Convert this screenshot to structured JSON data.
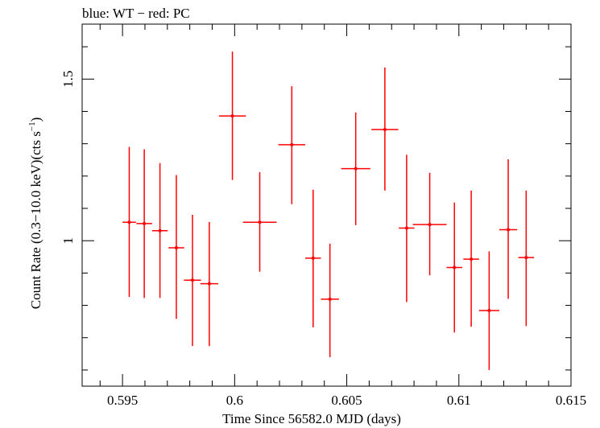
{
  "chart_data": {
    "type": "scatter",
    "title": "blue: WT − red: PC",
    "xlabel": "Time Since 56582.0 MJD (days)",
    "ylabel": "Count Rate (0.3−10.0 keV)(cts s−1)",
    "xlim": [
      0.5932,
      0.615
    ],
    "ylim": [
      0.55,
      1.67
    ],
    "x_ticks": [
      0.595,
      0.6,
      0.605,
      0.61,
      0.615
    ],
    "x_tick_labels": [
      "0.595",
      "0.6",
      "0.605",
      "0.61",
      "0.615"
    ],
    "y_ticks": [
      1.0,
      1.5
    ],
    "y_tick_labels": [
      "1",
      "1.5"
    ],
    "grid": false,
    "series": [
      {
        "name": "PC",
        "color": "#ff0000",
        "points": [
          {
            "x": 0.5953,
            "y": 1.057,
            "xerr": 0.0003,
            "ylo": 0.826,
            "yhi": 1.29
          },
          {
            "x": 0.59597,
            "y": 1.053,
            "xerr": 0.00035,
            "ylo": 0.823,
            "yhi": 1.283
          },
          {
            "x": 0.59667,
            "y": 1.031,
            "xerr": 0.00035,
            "ylo": 0.823,
            "yhi": 1.24
          },
          {
            "x": 0.5974,
            "y": 0.978,
            "xerr": 0.00035,
            "ylo": 0.758,
            "yhi": 1.203
          },
          {
            "x": 0.59812,
            "y": 0.878,
            "xerr": 0.00038,
            "ylo": 0.674,
            "yhi": 1.08
          },
          {
            "x": 0.59887,
            "y": 0.867,
            "xerr": 0.0004,
            "ylo": 0.674,
            "yhi": 1.058
          },
          {
            "x": 0.5999,
            "y": 1.386,
            "xerr": 0.0006,
            "ylo": 1.188,
            "yhi": 1.585
          },
          {
            "x": 0.60112,
            "y": 1.057,
            "xerr": 0.00075,
            "ylo": 0.904,
            "yhi": 1.212
          },
          {
            "x": 0.60255,
            "y": 1.297,
            "xerr": 0.0006,
            "ylo": 1.113,
            "yhi": 1.478
          },
          {
            "x": 0.6035,
            "y": 0.946,
            "xerr": 0.00035,
            "ylo": 0.732,
            "yhi": 1.158
          },
          {
            "x": 0.60425,
            "y": 0.819,
            "xerr": 0.0004,
            "ylo": 0.64,
            "yhi": 0.991
          },
          {
            "x": 0.6054,
            "y": 1.223,
            "xerr": 0.00065,
            "ylo": 1.048,
            "yhi": 1.397
          },
          {
            "x": 0.6067,
            "y": 1.344,
            "xerr": 0.0006,
            "ylo": 1.155,
            "yhi": 1.536
          },
          {
            "x": 0.60767,
            "y": 1.039,
            "xerr": 0.00035,
            "ylo": 0.81,
            "yhi": 1.266
          },
          {
            "x": 0.6087,
            "y": 1.05,
            "xerr": 0.00075,
            "ylo": 0.893,
            "yhi": 1.21
          },
          {
            "x": 0.6098,
            "y": 0.917,
            "xerr": 0.00035,
            "ylo": 0.716,
            "yhi": 1.118
          },
          {
            "x": 0.61055,
            "y": 0.943,
            "xerr": 0.00035,
            "ylo": 0.734,
            "yhi": 1.155
          },
          {
            "x": 0.61135,
            "y": 0.784,
            "xerr": 0.00045,
            "ylo": 0.6,
            "yhi": 0.967
          },
          {
            "x": 0.6122,
            "y": 1.034,
            "xerr": 0.0004,
            "ylo": 0.82,
            "yhi": 1.252
          },
          {
            "x": 0.613,
            "y": 0.948,
            "xerr": 0.00035,
            "ylo": 0.736,
            "yhi": 1.155
          }
        ]
      }
    ]
  }
}
